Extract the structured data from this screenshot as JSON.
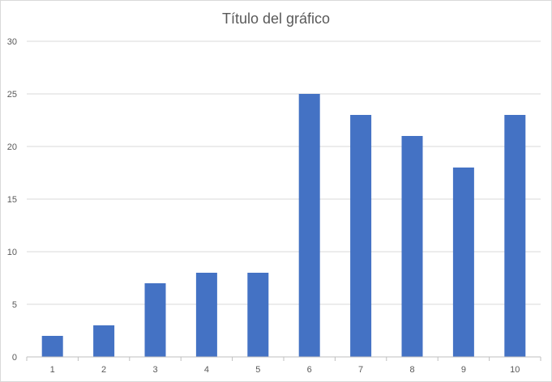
{
  "chart_data": {
    "type": "bar",
    "title": "Título del gráfico",
    "categories": [
      "1",
      "2",
      "3",
      "4",
      "5",
      "6",
      "7",
      "8",
      "9",
      "10"
    ],
    "values": [
      2,
      3,
      7,
      8,
      8,
      25,
      23,
      21,
      18,
      23
    ],
    "ylim": [
      0,
      30
    ],
    "yticks": [
      0,
      5,
      10,
      15,
      20,
      25,
      30
    ],
    "grid": true,
    "bar_color": "#4472c4",
    "grid_color": "#d9d9d9",
    "axis_color": "#bfbfbf"
  }
}
